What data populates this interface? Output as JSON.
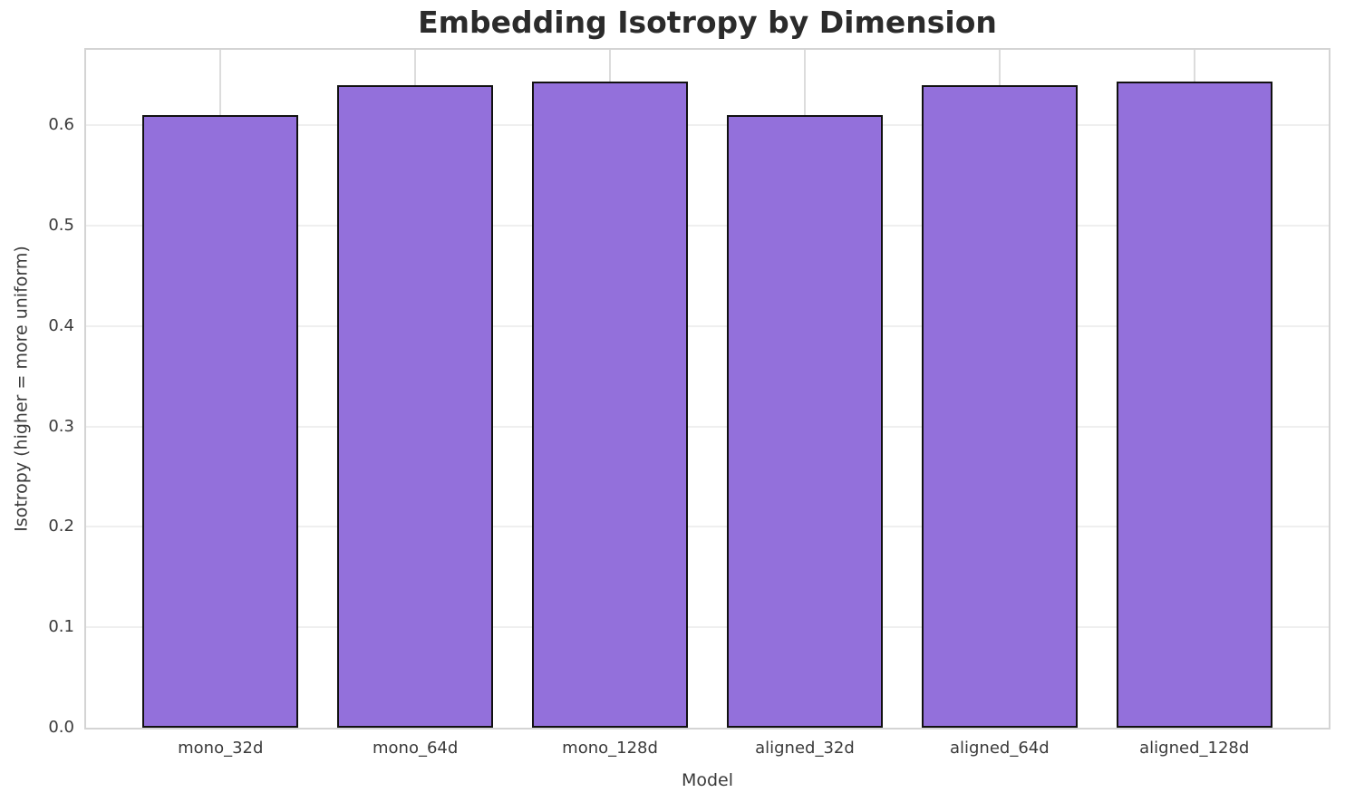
{
  "chart_data": {
    "type": "bar",
    "title": "Embedding Isotropy by Dimension",
    "xlabel": "Model",
    "ylabel": "Isotropy (higher = more uniform)",
    "categories": [
      "mono_32d",
      "mono_64d",
      "mono_128d",
      "aligned_32d",
      "aligned_64d",
      "aligned_128d"
    ],
    "values": [
      0.61,
      0.64,
      0.643,
      0.61,
      0.64,
      0.643
    ],
    "yticks": [
      0.0,
      0.1,
      0.2,
      0.3,
      0.4,
      0.5,
      0.6
    ],
    "ytick_labels": [
      "0.0",
      "0.1",
      "0.2",
      "0.3",
      "0.4",
      "0.5",
      "0.6"
    ],
    "ylim": [
      0,
      0.675
    ],
    "xlim_units": [
      -0.69,
      5.69
    ],
    "bar_width_units": 0.8,
    "grid": true,
    "legend": false,
    "colors": {
      "background": "#ffffff",
      "bar_fill": "#9370DB",
      "bar_edge": "#111111",
      "grid_horizontal": "#efefef",
      "grid_vertical": "#dcdcdc",
      "spine": "#d4d4d4",
      "tick_text": "#3a3a3a",
      "title_text": "#2b2b2b"
    }
  }
}
